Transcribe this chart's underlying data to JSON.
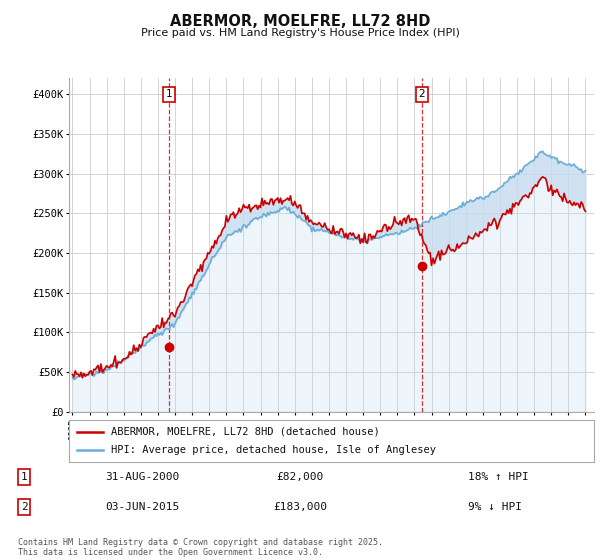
{
  "title": "ABERMOR, MOELFRE, LL72 8HD",
  "subtitle": "Price paid vs. HM Land Registry's House Price Index (HPI)",
  "ylabel_ticks": [
    "£0",
    "£50K",
    "£100K",
    "£150K",
    "£200K",
    "£250K",
    "£300K",
    "£350K",
    "£400K"
  ],
  "ytick_values": [
    0,
    50000,
    100000,
    150000,
    200000,
    250000,
    300000,
    350000,
    400000
  ],
  "ylim": [
    0,
    420000
  ],
  "xlim_start": 1994.8,
  "xlim_end": 2025.5,
  "hpi_color": "#6baed6",
  "hpi_fill_color": "#c6dbef",
  "price_color": "#cc0000",
  "marker1_x": 2000.67,
  "marker1_y": 82000,
  "marker2_x": 2015.42,
  "marker2_y": 183000,
  "dashed_color": "#cc0000",
  "legend_label1": "ABERMOR, MOELFRE, LL72 8HD (detached house)",
  "legend_label2": "HPI: Average price, detached house, Isle of Anglesey",
  "table_row1_num": "1",
  "table_row1_date": "31-AUG-2000",
  "table_row1_price": "£82,000",
  "table_row1_hpi": "18% ↑ HPI",
  "table_row2_num": "2",
  "table_row2_date": "03-JUN-2015",
  "table_row2_price": "£183,000",
  "table_row2_hpi": "9% ↓ HPI",
  "footer": "Contains HM Land Registry data © Crown copyright and database right 2025.\nThis data is licensed under the Open Government Licence v3.0.",
  "background_color": "#ffffff",
  "grid_color": "#cccccc"
}
